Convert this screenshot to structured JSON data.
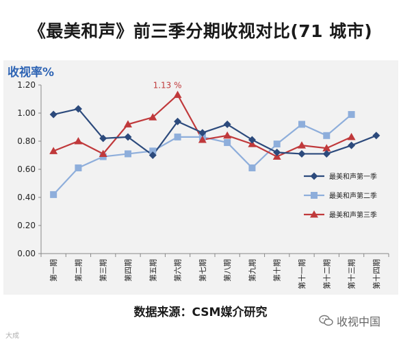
{
  "title": "《最美和声》前三季分期收视对比(71 城市)",
  "footer": "数据来源：CSM媒介研究",
  "watermark_left": "大成",
  "watermark_right": "收视中国",
  "chart_data": {
    "type": "line",
    "title": "《最美和声》前三季分期收视对比(71 城市)",
    "ylabel": "收视率%",
    "xlabel": "",
    "ylim": [
      0,
      1.2
    ],
    "yticks": [
      0,
      0.2,
      0.4,
      0.6,
      0.8,
      1.0,
      1.2
    ],
    "ytick_labels": [
      "0.00",
      "0.20",
      "0.40",
      "0.60",
      "0.80",
      "1.00",
      "1.20"
    ],
    "categories": [
      "第一期",
      "第二期",
      "第三期",
      "第四期",
      "第五期",
      "第六期",
      "第七期",
      "第八期",
      "第九期",
      "第十期",
      "第十一期",
      "第十二期",
      "第十三期",
      "第十四期"
    ],
    "series": [
      {
        "name": "最美和声第一季",
        "color": "#2c4a7c",
        "marker": "diamond",
        "values": [
          0.99,
          1.03,
          0.82,
          0.83,
          0.7,
          0.94,
          0.86,
          0.92,
          0.81,
          0.72,
          0.71,
          0.71,
          0.77,
          0.84
        ]
      },
      {
        "name": "最美和声第二季",
        "color": "#8eaedb",
        "marker": "square",
        "values": [
          0.42,
          0.61,
          0.69,
          0.71,
          0.73,
          0.83,
          0.83,
          0.79,
          0.61,
          0.78,
          0.92,
          0.84,
          0.99,
          null
        ]
      },
      {
        "name": "最美和声第三季",
        "color": "#c0393b",
        "marker": "triangle",
        "values": [
          0.73,
          0.8,
          0.71,
          0.92,
          0.97,
          1.13,
          0.81,
          0.84,
          0.78,
          0.69,
          0.77,
          0.75,
          0.83,
          null
        ]
      }
    ],
    "annotations": [
      {
        "text": "1.13 %",
        "category": "第六期",
        "series": "最美和声第三季"
      }
    ],
    "legend": "right",
    "grid": false
  }
}
